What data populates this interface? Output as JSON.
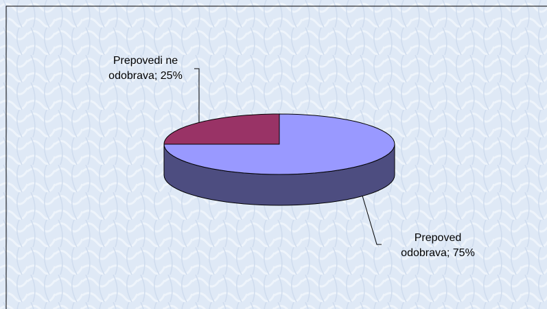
{
  "chart_data": {
    "type": "pie",
    "three_d": true,
    "values": [
      25,
      75
    ],
    "value_labels": [
      "Prepovedi ne odobrava; 25%",
      "Prepoved odobrava; 75%"
    ],
    "colors": [
      "#993366",
      "#9999ff"
    ]
  }
}
